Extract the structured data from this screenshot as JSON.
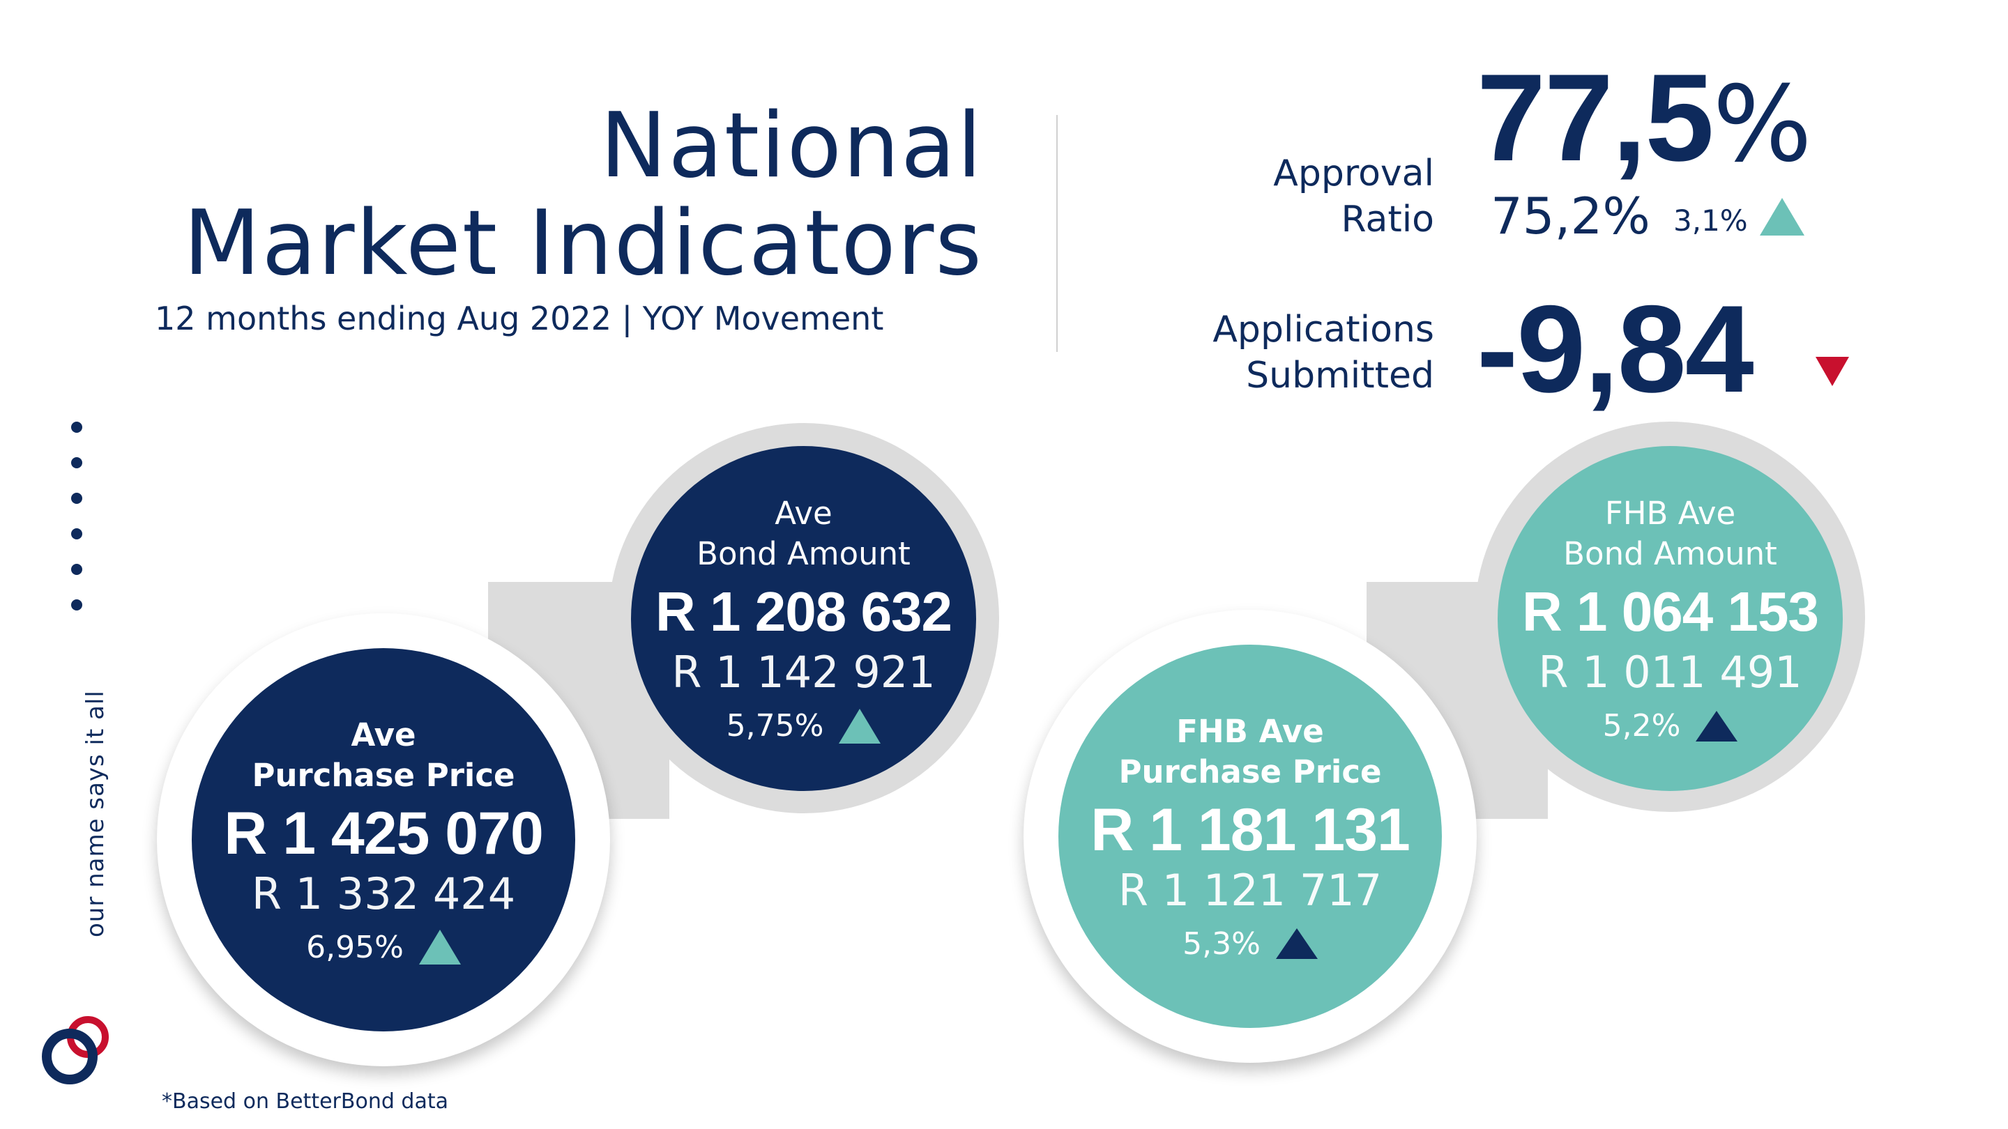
{
  "header": {
    "title_line1": "National",
    "title_line2": "Market Indicators",
    "subtitle": "12 months ending Aug 2022 | YOY Movement"
  },
  "approval": {
    "label_line1": "Approval",
    "label_line2": "Ratio",
    "value": "77,5",
    "value_unit": "%",
    "previous": "75,2%",
    "change": "3,1%",
    "direction_icon": "triangle-up-icon"
  },
  "applications": {
    "label_line1": "Applications",
    "label_line2": "Submitted",
    "value": "-9,84",
    "direction_icon": "triangle-down-icon"
  },
  "indicators": {
    "purchase_price": {
      "label_line1": "Ave",
      "label_line2": "Purchase Price",
      "current": "R 1 425 070",
      "previous": "R 1 332 424",
      "change": "6,95%"
    },
    "bond_amount": {
      "label_line1": "Ave",
      "label_line2": "Bond Amount",
      "current": "R 1 208 632",
      "previous": "R 1 142 921",
      "change": "5,75%"
    },
    "fhb_purchase_price": {
      "label_line1": "FHB Ave",
      "label_line2": "Purchase Price",
      "current": "R 1 181 131",
      "previous": "R 1 121 717",
      "change": "5,3%"
    },
    "fhb_bond_amount": {
      "label_line1": "FHB Ave",
      "label_line2": "Bond Amount",
      "current": "R 1 064 153",
      "previous": "R 1 011 491",
      "change": "5,2%"
    }
  },
  "sidebar": {
    "tagline": "our name says it all"
  },
  "footer": {
    "note": "*Based on BetterBond data"
  },
  "colors": {
    "navy": "#0e2a5c",
    "teal": "#6cc1b7",
    "red": "#c8102e",
    "ring_grey": "#dcdcdc"
  }
}
